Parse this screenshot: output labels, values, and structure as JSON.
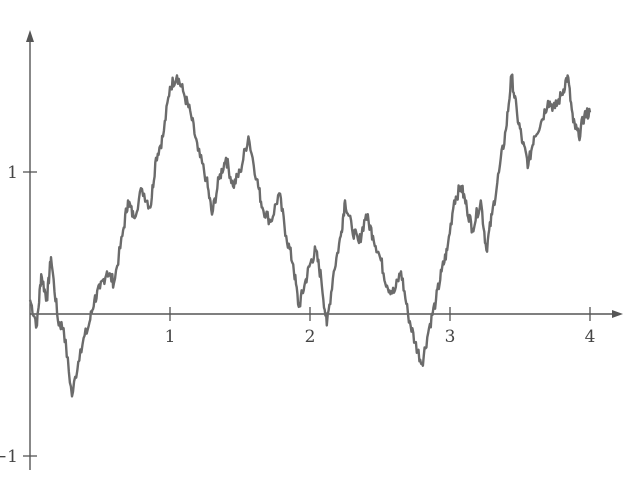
{
  "chart_data": {
    "type": "line",
    "title": "",
    "xlabel": "",
    "ylabel": "",
    "xlim": [
      0,
      4.2
    ],
    "ylim": [
      -1.0,
      2.0
    ],
    "grid": false,
    "legend": "none",
    "x_ticks": [
      {
        "value": 1,
        "label": "1"
      },
      {
        "value": 2,
        "label": "2"
      },
      {
        "value": 3,
        "label": "3"
      },
      {
        "value": 4,
        "label": "4"
      }
    ],
    "y_ticks": [
      {
        "value": 1,
        "label": "1"
      },
      {
        "value": -1,
        "label": "−1"
      }
    ],
    "series": [
      {
        "color": "#6b6b6b",
        "points": [
          [
            0.0,
            0.1
          ],
          [
            0.05,
            -0.08
          ],
          [
            0.08,
            0.28
          ],
          [
            0.12,
            0.1
          ],
          [
            0.15,
            0.4
          ],
          [
            0.2,
            -0.05
          ],
          [
            0.24,
            -0.1
          ],
          [
            0.3,
            -0.58
          ],
          [
            0.36,
            -0.25
          ],
          [
            0.42,
            -0.08
          ],
          [
            0.46,
            0.1
          ],
          [
            0.5,
            0.18
          ],
          [
            0.55,
            0.3
          ],
          [
            0.6,
            0.22
          ],
          [
            0.66,
            0.55
          ],
          [
            0.7,
            0.8
          ],
          [
            0.74,
            0.68
          ],
          [
            0.8,
            0.88
          ],
          [
            0.86,
            0.75
          ],
          [
            0.9,
            1.1
          ],
          [
            0.95,
            1.25
          ],
          [
            1.0,
            1.6
          ],
          [
            1.05,
            1.68
          ],
          [
            1.1,
            1.55
          ],
          [
            1.15,
            1.4
          ],
          [
            1.2,
            1.15
          ],
          [
            1.26,
            0.95
          ],
          [
            1.3,
            0.7
          ],
          [
            1.35,
            0.95
          ],
          [
            1.4,
            1.1
          ],
          [
            1.45,
            0.9
          ],
          [
            1.5,
            1.0
          ],
          [
            1.56,
            1.25
          ],
          [
            1.62,
            0.95
          ],
          [
            1.66,
            0.75
          ],
          [
            1.72,
            0.65
          ],
          [
            1.78,
            0.85
          ],
          [
            1.83,
            0.55
          ],
          [
            1.88,
            0.35
          ],
          [
            1.92,
            0.05
          ],
          [
            1.96,
            0.2
          ],
          [
            2.0,
            0.35
          ],
          [
            2.04,
            0.45
          ],
          [
            2.08,
            0.25
          ],
          [
            2.12,
            -0.08
          ],
          [
            2.17,
            0.3
          ],
          [
            2.22,
            0.55
          ],
          [
            2.25,
            0.8
          ],
          [
            2.3,
            0.6
          ],
          [
            2.35,
            0.5
          ],
          [
            2.4,
            0.7
          ],
          [
            2.45,
            0.55
          ],
          [
            2.5,
            0.4
          ],
          [
            2.55,
            0.2
          ],
          [
            2.6,
            0.15
          ],
          [
            2.65,
            0.3
          ],
          [
            2.7,
            0.0
          ],
          [
            2.75,
            -0.2
          ],
          [
            2.8,
            -0.35
          ],
          [
            2.85,
            -0.1
          ],
          [
            2.9,
            0.1
          ],
          [
            2.94,
            0.3
          ],
          [
            2.98,
            0.45
          ],
          [
            3.03,
            0.8
          ],
          [
            3.08,
            0.9
          ],
          [
            3.12,
            0.75
          ],
          [
            3.16,
            0.6
          ],
          [
            3.22,
            0.8
          ],
          [
            3.26,
            0.45
          ],
          [
            3.3,
            0.7
          ],
          [
            3.35,
            1.0
          ],
          [
            3.4,
            1.3
          ],
          [
            3.44,
            1.68
          ],
          [
            3.48,
            1.4
          ],
          [
            3.52,
            1.2
          ],
          [
            3.56,
            1.05
          ],
          [
            3.6,
            1.25
          ],
          [
            3.65,
            1.35
          ],
          [
            3.7,
            1.5
          ],
          [
            3.75,
            1.45
          ],
          [
            3.8,
            1.55
          ],
          [
            3.84,
            1.68
          ],
          [
            3.88,
            1.35
          ],
          [
            3.92,
            1.25
          ],
          [
            3.96,
            1.4
          ],
          [
            4.0,
            1.42
          ]
        ]
      }
    ]
  }
}
